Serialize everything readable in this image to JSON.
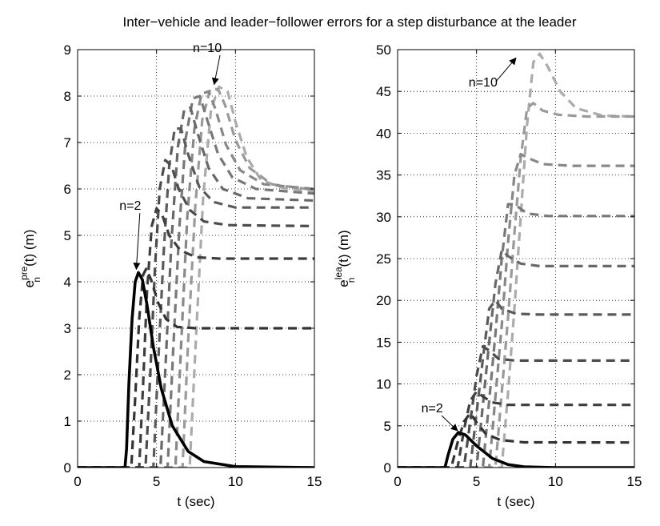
{
  "title": "Inter−vehicle and leader−follower errors for a step disturbance at the leader",
  "chart_data": [
    {
      "type": "line",
      "xlabel": "t (sec)",
      "ylabel_main": "e",
      "ylabel_sup": "pre",
      "ylabel_sub": "n",
      "ylabel_tail": "(t) (m)",
      "xlim": [
        0,
        15
      ],
      "ylim": [
        0,
        9
      ],
      "xticks": [
        0,
        5,
        10,
        15
      ],
      "yticks": [
        0,
        1,
        2,
        3,
        4,
        5,
        6,
        7,
        8,
        9
      ],
      "grid": true,
      "annotations": [
        {
          "text": "n=2",
          "tx": 2.65,
          "ty": 5.55,
          "ax": 3.72,
          "ay": 4.27
        },
        {
          "text": "n=10",
          "tx": 7.3,
          "ty": 8.95,
          "ax": 8.65,
          "ay": 8.25
        }
      ],
      "series": [
        {
          "shade": "#000000",
          "dashed": false,
          "points": [
            [
              0,
              0
            ],
            [
              3,
              0
            ],
            [
              3.1,
              0.4
            ],
            [
              3.25,
              1.8
            ],
            [
              3.45,
              3.2
            ],
            [
              3.65,
              4
            ],
            [
              3.85,
              4.2
            ],
            [
              4.1,
              4.05
            ],
            [
              4.4,
              3.5
            ],
            [
              4.8,
              2.6
            ],
            [
              5.3,
              1.7
            ],
            [
              6,
              0.9
            ],
            [
              7,
              0.35
            ],
            [
              8,
              0.13
            ],
            [
              10,
              0.02
            ],
            [
              15,
              0
            ]
          ]
        },
        {
          "shade": "#333333",
          "dashed": true,
          "points": [
            [
              0,
              0
            ],
            [
              3.4,
              0
            ],
            [
              3.65,
              1.5
            ],
            [
              3.9,
              3.2
            ],
            [
              4.15,
              4.15
            ],
            [
              4.35,
              4.28
            ],
            [
              4.65,
              4.05
            ],
            [
              5.1,
              3.55
            ],
            [
              5.6,
              3.2
            ],
            [
              6.3,
              3.03
            ],
            [
              7.5,
              3
            ],
            [
              15,
              3
            ]
          ]
        },
        {
          "shade": "#3e3e3e",
          "dashed": true,
          "points": [
            [
              0,
              0
            ],
            [
              3.9,
              0
            ],
            [
              4.15,
              1.8
            ],
            [
              4.4,
              3.8
            ],
            [
              4.7,
              5.2
            ],
            [
              5,
              5.58
            ],
            [
              5.35,
              5.45
            ],
            [
              5.8,
              5
            ],
            [
              6.5,
              4.68
            ],
            [
              7.5,
              4.53
            ],
            [
              9,
              4.5
            ],
            [
              15,
              4.5
            ]
          ]
        },
        {
          "shade": "#4c4c4c",
          "dashed": true,
          "points": [
            [
              0,
              0
            ],
            [
              4.3,
              0
            ],
            [
              4.6,
              2
            ],
            [
              4.9,
              4.3
            ],
            [
              5.2,
              6
            ],
            [
              5.55,
              6.62
            ],
            [
              5.95,
              6.5
            ],
            [
              6.4,
              6
            ],
            [
              7.1,
              5.55
            ],
            [
              8,
              5.3
            ],
            [
              9.5,
              5.22
            ],
            [
              15,
              5.2
            ]
          ]
        },
        {
          "shade": "#5a5a5a",
          "dashed": true,
          "points": [
            [
              0,
              0
            ],
            [
              4.8,
              0
            ],
            [
              5.1,
              2.2
            ],
            [
              5.45,
              4.6
            ],
            [
              5.8,
              6.5
            ],
            [
              6.15,
              7.3
            ],
            [
              6.55,
              7.3
            ],
            [
              7,
              6.75
            ],
            [
              7.7,
              6.05
            ],
            [
              8.6,
              5.72
            ],
            [
              10,
              5.6
            ],
            [
              15,
              5.6
            ]
          ]
        },
        {
          "shade": "#686868",
          "dashed": true,
          "points": [
            [
              0,
              0
            ],
            [
              5.25,
              0
            ],
            [
              5.6,
              2.4
            ],
            [
              5.95,
              4.9
            ],
            [
              6.35,
              6.9
            ],
            [
              6.75,
              7.7
            ],
            [
              7.15,
              7.75
            ],
            [
              7.6,
              7.2
            ],
            [
              8.3,
              6.45
            ],
            [
              9.2,
              6
            ],
            [
              10.8,
              5.8
            ],
            [
              15,
              5.75
            ]
          ]
        },
        {
          "shade": "#787878",
          "dashed": true,
          "points": [
            [
              0,
              0
            ],
            [
              5.7,
              0
            ],
            [
              6.05,
              2.5
            ],
            [
              6.45,
              5.2
            ],
            [
              6.85,
              7.1
            ],
            [
              7.3,
              7.95
            ],
            [
              7.75,
              8
            ],
            [
              8.2,
              7.5
            ],
            [
              8.9,
              6.75
            ],
            [
              9.8,
              6.25
            ],
            [
              11.3,
              6
            ],
            [
              15,
              5.9
            ]
          ]
        },
        {
          "shade": "#888888",
          "dashed": true,
          "points": [
            [
              0,
              0
            ],
            [
              6.2,
              0
            ],
            [
              6.55,
              2.6
            ],
            [
              6.95,
              5.4
            ],
            [
              7.4,
              7.3
            ],
            [
              7.85,
              8.05
            ],
            [
              8.3,
              8.1
            ],
            [
              8.75,
              7.7
            ],
            [
              9.4,
              6.95
            ],
            [
              10.3,
              6.4
            ],
            [
              11.8,
              6.1
            ],
            [
              15,
              6
            ]
          ]
        },
        {
          "shade": "#9a9a9a",
          "dashed": true,
          "points": [
            [
              0,
              0
            ],
            [
              6.65,
              0
            ],
            [
              7,
              2.7
            ],
            [
              7.45,
              5.6
            ],
            [
              7.9,
              7.5
            ],
            [
              8.4,
              8.15
            ],
            [
              8.9,
              8.15
            ],
            [
              9.35,
              7.8
            ],
            [
              10,
              7.05
            ],
            [
              10.9,
              6.45
            ],
            [
              12.3,
              6.1
            ],
            [
              15,
              5.98
            ]
          ]
        },
        {
          "shade": "#ababab",
          "dashed": true,
          "points": [
            [
              0,
              0
            ],
            [
              7.1,
              0
            ],
            [
              7.5,
              2.8
            ],
            [
              7.95,
              5.8
            ],
            [
              8.45,
              7.7
            ],
            [
              8.95,
              8.2
            ],
            [
              9.5,
              8.1
            ],
            [
              10,
              7.45
            ],
            [
              10.7,
              6.7
            ],
            [
              11.6,
              6.2
            ],
            [
              13,
              6.02
            ],
            [
              15,
              5.95
            ]
          ]
        }
      ]
    },
    {
      "type": "line",
      "xlabel": "t (sec)",
      "ylabel_main": "e",
      "ylabel_sup": "lea",
      "ylabel_sub": "n",
      "ylabel_tail": "(t) (m)",
      "xlim": [
        0,
        15
      ],
      "ylim": [
        0,
        50
      ],
      "xticks": [
        0,
        5,
        10,
        15
      ],
      "yticks": [
        0,
        5,
        10,
        15,
        20,
        25,
        30,
        35,
        40,
        45,
        50
      ],
      "grid": true,
      "annotations": [
        {
          "text": "n=2",
          "tx": 1.5,
          "ty": 6.6,
          "ax": 3.8,
          "ay": 4.4
        },
        {
          "text": "n=10",
          "tx": 4.5,
          "ty": 45.6,
          "ax": 7.5,
          "ay": 49.0
        }
      ],
      "series": [
        {
          "shade": "#000000",
          "dashed": false,
          "points": [
            [
              0,
              0
            ],
            [
              3,
              0
            ],
            [
              3.2,
              1.5
            ],
            [
              3.5,
              3.4
            ],
            [
              3.85,
              4.2
            ],
            [
              4.3,
              3.9
            ],
            [
              5,
              2.6
            ],
            [
              6,
              1.1
            ],
            [
              7,
              0.35
            ],
            [
              8,
              0.1
            ],
            [
              10,
              0
            ],
            [
              15,
              0
            ]
          ]
        },
        {
          "shade": "#333333",
          "dashed": true,
          "points": [
            [
              0,
              0
            ],
            [
              3.4,
              0
            ],
            [
              3.8,
              3
            ],
            [
              4.2,
              5.5
            ],
            [
              4.6,
              6.5
            ],
            [
              5,
              5.4
            ],
            [
              5.6,
              4
            ],
            [
              6.5,
              3.3
            ],
            [
              8,
              3.02
            ],
            [
              15,
              3
            ]
          ]
        },
        {
          "shade": "#3e3e3e",
          "dashed": true,
          "points": [
            [
              0,
              0
            ],
            [
              3.8,
              0
            ],
            [
              4.2,
              4.5
            ],
            [
              4.6,
              8
            ],
            [
              5,
              9.1
            ],
            [
              5.4,
              8.5
            ],
            [
              6,
              7.8
            ],
            [
              7,
              7.5
            ],
            [
              15,
              7.5
            ]
          ]
        },
        {
          "shade": "#4c4c4c",
          "dashed": true,
          "points": [
            [
              0,
              0
            ],
            [
              4.2,
              0
            ],
            [
              4.6,
              5.5
            ],
            [
              5,
              11
            ],
            [
              5.4,
              14.5
            ],
            [
              5.8,
              14
            ],
            [
              6.4,
              13
            ],
            [
              7.5,
              12.8
            ],
            [
              15,
              12.8
            ]
          ]
        },
        {
          "shade": "#5a5a5a",
          "dashed": true,
          "points": [
            [
              0,
              0
            ],
            [
              4.6,
              0
            ],
            [
              5,
              6.5
            ],
            [
              5.4,
              13
            ],
            [
              5.8,
              19
            ],
            [
              6.2,
              20
            ],
            [
              6.6,
              19
            ],
            [
              7.5,
              18.4
            ],
            [
              9,
              18.3
            ],
            [
              15,
              18.3
            ]
          ]
        },
        {
          "shade": "#686868",
          "dashed": true,
          "points": [
            [
              0,
              0
            ],
            [
              5,
              0
            ],
            [
              5.4,
              7.5
            ],
            [
              5.8,
              15
            ],
            [
              6.2,
              22
            ],
            [
              6.6,
              26
            ],
            [
              7,
              25.3
            ],
            [
              7.8,
              24.4
            ],
            [
              9,
              24.1
            ],
            [
              15,
              24.1
            ]
          ]
        },
        {
          "shade": "#787878",
          "dashed": true,
          "points": [
            [
              0,
              0
            ],
            [
              5.4,
              0
            ],
            [
              5.8,
              8
            ],
            [
              6.2,
              16
            ],
            [
              6.6,
              25
            ],
            [
              7,
              31.5
            ],
            [
              7.4,
              31.5
            ],
            [
              8.2,
              30.4
            ],
            [
              9.5,
              30.1
            ],
            [
              15,
              30.1
            ]
          ]
        },
        {
          "shade": "#888888",
          "dashed": true,
          "points": [
            [
              0,
              0
            ],
            [
              5.8,
              0
            ],
            [
              6.2,
              8.5
            ],
            [
              6.6,
              17
            ],
            [
              7,
              27
            ],
            [
              7.4,
              35
            ],
            [
              7.8,
              37.5
            ],
            [
              8.3,
              37
            ],
            [
              9.2,
              36.3
            ],
            [
              11,
              36.1
            ],
            [
              15,
              36.1
            ]
          ]
        },
        {
          "shade": "#9a9a9a",
          "dashed": true,
          "points": [
            [
              0,
              0
            ],
            [
              6.2,
              0
            ],
            [
              6.6,
              9
            ],
            [
              7,
              18
            ],
            [
              7.4,
              28
            ],
            [
              7.8,
              37
            ],
            [
              8.2,
              43
            ],
            [
              8.6,
              43.6
            ],
            [
              9.2,
              42.7
            ],
            [
              10.2,
              42.2
            ],
            [
              12,
              42
            ],
            [
              15,
              42
            ]
          ]
        },
        {
          "shade": "#ababab",
          "dashed": true,
          "points": [
            [
              0,
              0
            ],
            [
              6.6,
              0
            ],
            [
              7,
              9
            ],
            [
              7.4,
              19
            ],
            [
              7.8,
              30
            ],
            [
              8.2,
              41
            ],
            [
              8.6,
              48.5
            ],
            [
              9,
              49.5
            ],
            [
              9.5,
              48
            ],
            [
              10.3,
              45
            ],
            [
              11.3,
              43
            ],
            [
              13,
              42.1
            ],
            [
              15,
              42
            ]
          ]
        }
      ]
    }
  ]
}
